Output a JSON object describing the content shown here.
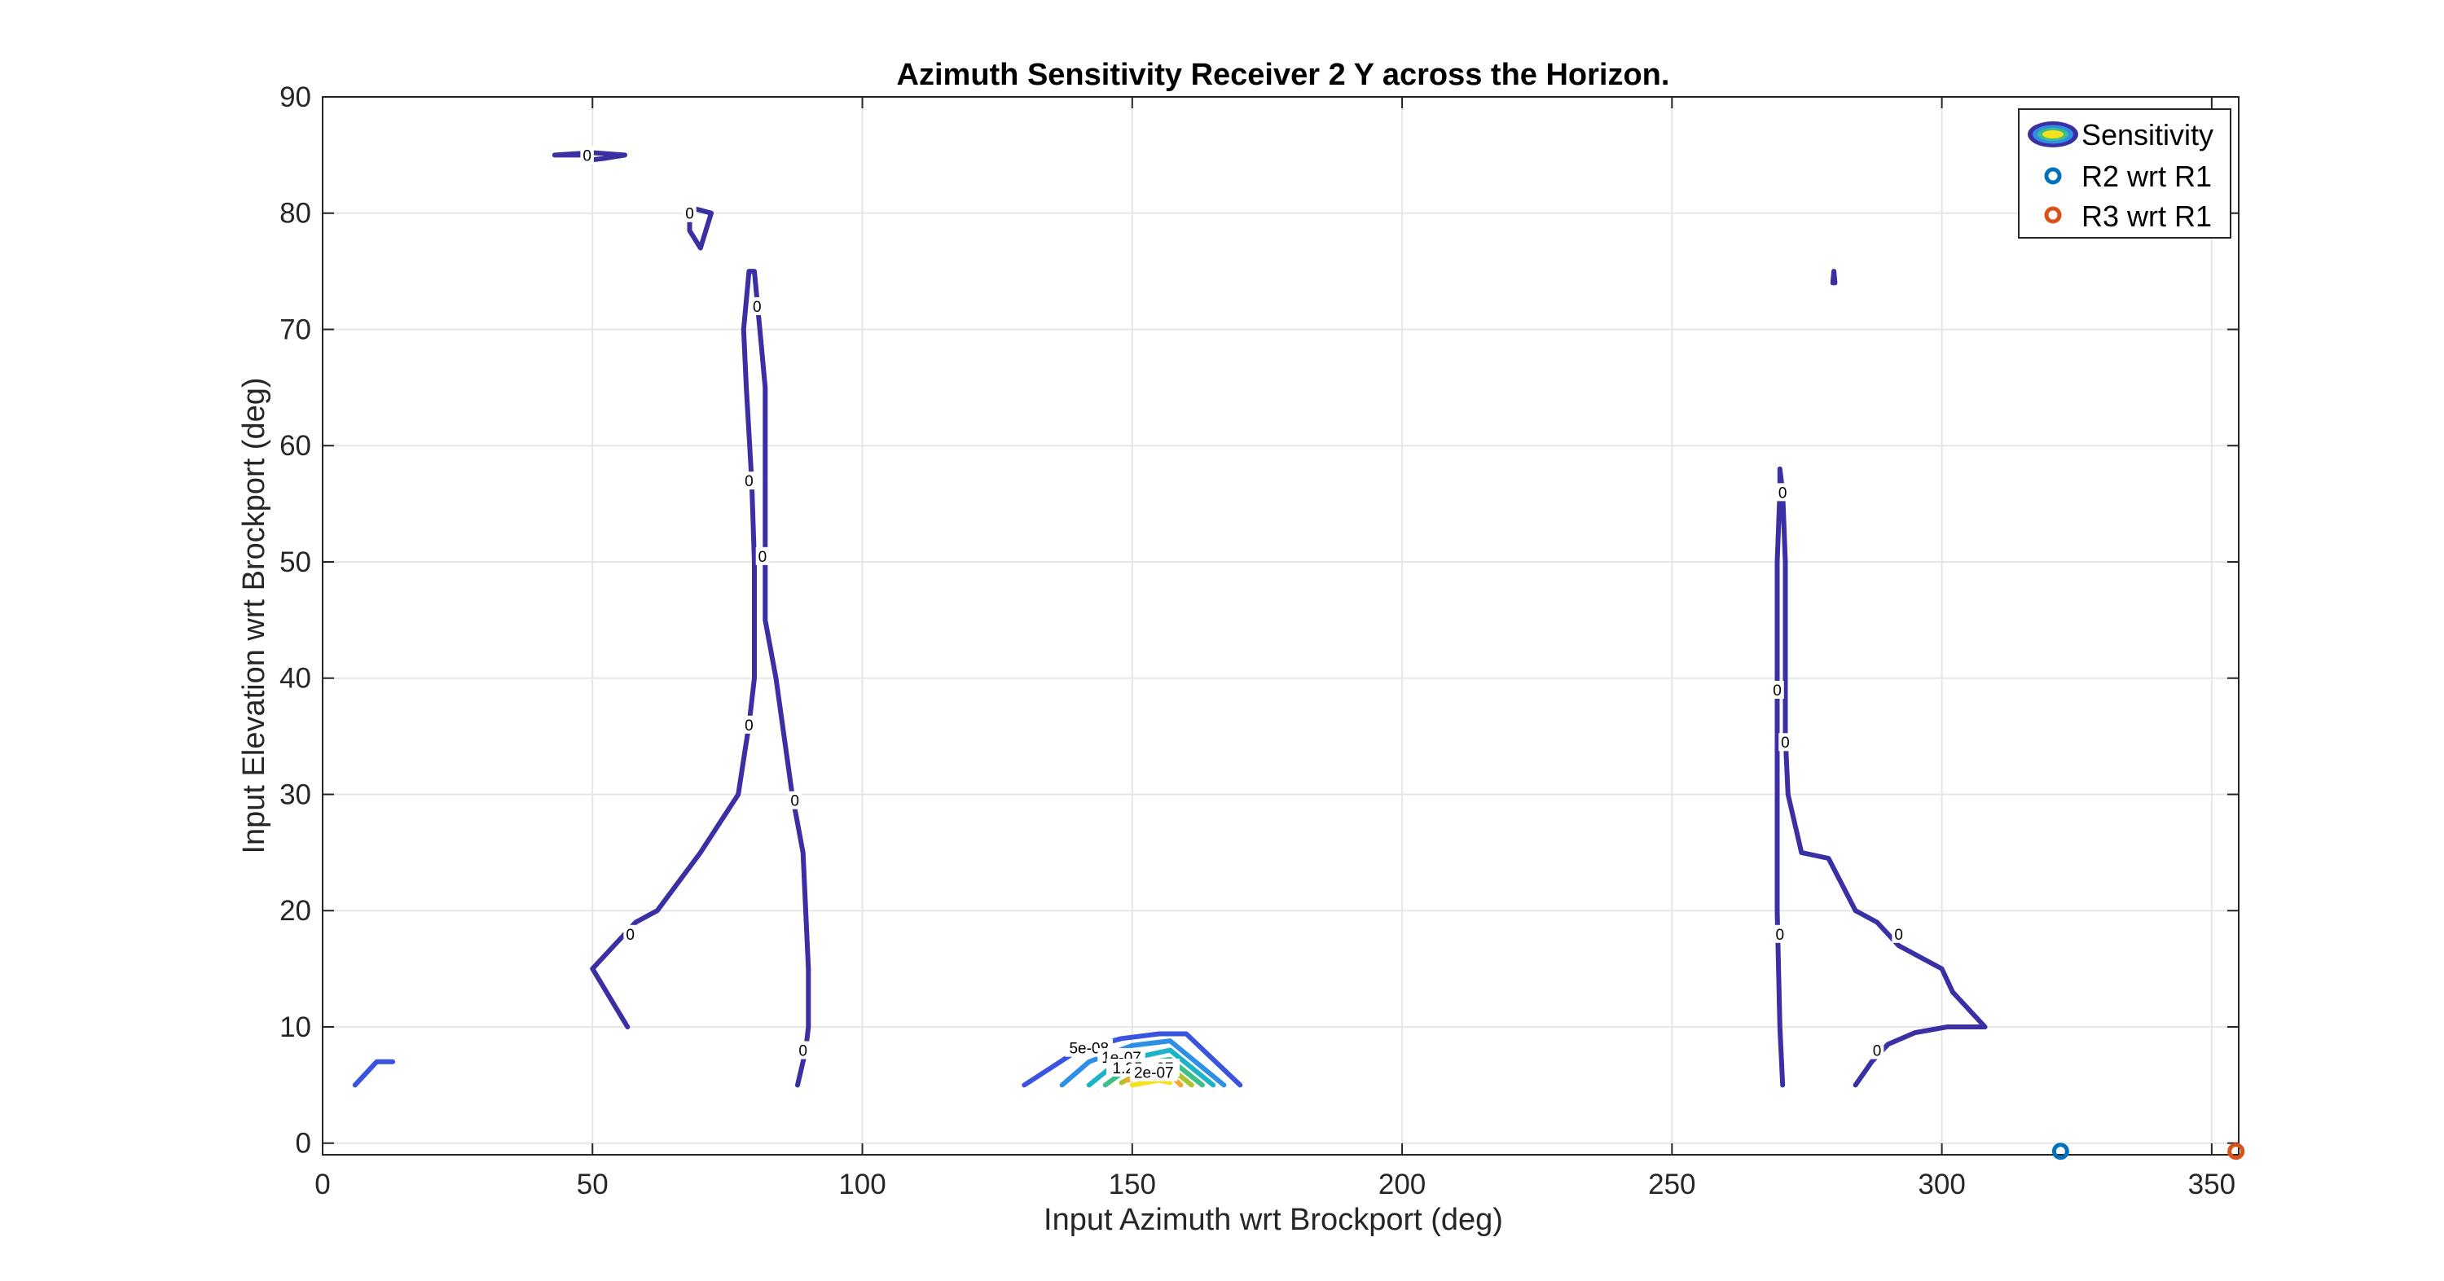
{
  "chart_data": {
    "type": "contour",
    "title": "Azimuth Sensitivity Receiver 2 Y across the Horizon.",
    "xlabel": "Input Azimuth wrt Brockport (deg)",
    "ylabel": "Input Elevation wrt Brockport (deg)",
    "xlim": [
      0,
      355
    ],
    "ylim": [
      -1,
      90
    ],
    "xticks": [
      0,
      50,
      100,
      150,
      200,
      250,
      300,
      350
    ],
    "yticks": [
      0,
      10,
      20,
      30,
      40,
      50,
      60,
      70,
      80,
      90
    ],
    "grid": true,
    "legend_position": "top-right",
    "legend": [
      {
        "label": "Sensitivity",
        "marker": "contour"
      },
      {
        "label": "R2 wrt R1",
        "marker": "circle",
        "color": "#0072BD"
      },
      {
        "label": "R3 wrt R1",
        "marker": "circle",
        "color": "#D95319"
      }
    ],
    "colors": {
      "level0": "#3a2fa3",
      "level1": "#3a54e0",
      "level2": "#2f8fe6",
      "level3": "#1cb3c8",
      "level4": "#3dc087",
      "level5": "#a8c530",
      "level6": "#f6a62f",
      "level7": "#f5e11d",
      "grid": "#e6e6e6",
      "axis": "#262626"
    },
    "contours": [
      {
        "level": 0,
        "label": "0",
        "color_key": "level0",
        "points": [
          [
            56.5,
            10
          ],
          [
            50,
            15
          ],
          [
            58,
            19
          ],
          [
            62,
            20
          ],
          [
            70,
            25
          ],
          [
            77,
            30
          ],
          [
            79,
            36
          ],
          [
            80,
            40
          ],
          [
            80,
            50
          ],
          [
            79.5,
            57
          ],
          [
            78.5,
            65
          ],
          [
            78,
            70
          ],
          [
            79,
            75
          ],
          [
            80,
            75
          ],
          [
            81,
            70
          ],
          [
            82,
            65
          ],
          [
            82,
            50
          ],
          [
            82,
            45
          ],
          [
            84,
            40
          ],
          [
            87,
            30
          ],
          [
            89,
            25
          ],
          [
            89.5,
            20
          ],
          [
            90,
            15
          ],
          [
            90,
            10
          ],
          [
            89.5,
            8
          ],
          [
            88,
            5
          ]
        ]
      },
      {
        "level": 0,
        "label": "0",
        "color_key": "level0",
        "points": [
          [
            43,
            85
          ],
          [
            48,
            85
          ],
          [
            50,
            84.6
          ],
          [
            52,
            84.7
          ],
          [
            56,
            85
          ],
          [
            50,
            85.2
          ],
          [
            43,
            85
          ]
        ]
      },
      {
        "level": 0,
        "label": "0",
        "color_key": "level0",
        "points": [
          [
            68,
            78.5
          ],
          [
            70,
            77
          ],
          [
            72,
            80
          ],
          [
            68,
            80.5
          ],
          [
            68,
            78.5
          ]
        ]
      },
      {
        "level": 0,
        "label": "0",
        "color_key": "level0",
        "points": [
          [
            270.5,
            5
          ],
          [
            270,
            10
          ],
          [
            269.5,
            20
          ],
          [
            269.5,
            30
          ],
          [
            269.5,
            40
          ],
          [
            269.5,
            50
          ],
          [
            270,
            56
          ],
          [
            270,
            58
          ],
          [
            270.5,
            56
          ],
          [
            271,
            50
          ],
          [
            271,
            45
          ],
          [
            271,
            40
          ],
          [
            271,
            35
          ],
          [
            271.5,
            30
          ],
          [
            274,
            25
          ],
          [
            279,
            24.5
          ],
          [
            284,
            20
          ],
          [
            288,
            19
          ],
          [
            292,
            17
          ],
          [
            300,
            15
          ],
          [
            302,
            13
          ],
          [
            308,
            10
          ],
          [
            301,
            10
          ],
          [
            295,
            9.5
          ],
          [
            290,
            8.5
          ],
          [
            287,
            7
          ],
          [
            284,
            5
          ]
        ]
      },
      {
        "level": 0,
        "label": "",
        "color_key": "level0",
        "points": [
          [
            279.8,
            74
          ],
          [
            280,
            75
          ],
          [
            280.2,
            74
          ]
        ]
      },
      {
        "level": 5e-08,
        "label": "",
        "color_key": "level1",
        "points": [
          [
            6,
            5
          ],
          [
            10,
            7
          ],
          [
            13,
            7
          ]
        ]
      },
      {
        "level": 5e-08,
        "label": "5e-08",
        "color_key": "level1",
        "points": [
          [
            130,
            5
          ],
          [
            140,
            8
          ],
          [
            148,
            9
          ],
          [
            155,
            9.4
          ],
          [
            160,
            9.4
          ],
          [
            170,
            5
          ]
        ]
      },
      {
        "level": 1e-07,
        "label": "1e-07",
        "color_key": "level2",
        "points": [
          [
            137,
            5
          ],
          [
            142,
            7
          ],
          [
            150,
            8.4
          ],
          [
            157,
            8.8
          ],
          [
            167,
            5
          ]
        ]
      },
      {
        "level": 1.25e-07,
        "label": "1.25e-07",
        "color_key": "level3",
        "points": [
          [
            142,
            5
          ],
          [
            146,
            6.5
          ],
          [
            152,
            7.5
          ],
          [
            157,
            8
          ],
          [
            165,
            5
          ]
        ]
      },
      {
        "level": 1.5e-07,
        "label": "",
        "color_key": "level4",
        "points": [
          [
            145,
            5
          ],
          [
            150,
            6.7
          ],
          [
            157,
            7.2
          ],
          [
            163,
            5
          ]
        ]
      },
      {
        "level": 1.75e-07,
        "label": "",
        "color_key": "level5",
        "points": [
          [
            148,
            5.2
          ],
          [
            153,
            6.4
          ],
          [
            157,
            6.5
          ],
          [
            161,
            5
          ]
        ]
      },
      {
        "level": 2e-07,
        "label": "2e-07",
        "color_key": "level6",
        "points": [
          [
            149,
            5.4
          ],
          [
            153,
            5.9
          ],
          [
            157,
            5.9
          ],
          [
            159,
            5
          ]
        ]
      },
      {
        "level": 2.25e-07,
        "label": "",
        "color_key": "level7",
        "points": [
          [
            150,
            5
          ],
          [
            155,
            5.4
          ],
          [
            157,
            5.2
          ]
        ]
      }
    ],
    "contour_labels": [
      {
        "text": "0",
        "x": 49,
        "y": 85
      },
      {
        "text": "0",
        "x": 68,
        "y": 80
      },
      {
        "text": "0",
        "x": 80.5,
        "y": 72
      },
      {
        "text": "0",
        "x": 79,
        "y": 57
      },
      {
        "text": "0",
        "x": 81.5,
        "y": 50.5
      },
      {
        "text": "0",
        "x": 79,
        "y": 36
      },
      {
        "text": "0",
        "x": 87.5,
        "y": 29.5
      },
      {
        "text": "0",
        "x": 57,
        "y": 18
      },
      {
        "text": "0",
        "x": 89,
        "y": 8
      },
      {
        "text": "0",
        "x": 270.5,
        "y": 56
      },
      {
        "text": "0",
        "x": 269.5,
        "y": 39
      },
      {
        "text": "0",
        "x": 271,
        "y": 34.5
      },
      {
        "text": "0",
        "x": 270,
        "y": 18
      },
      {
        "text": "0",
        "x": 292,
        "y": 18
      },
      {
        "text": "0",
        "x": 288,
        "y": 8
      },
      {
        "text": "5e-08",
        "x": 142,
        "y": 8.2
      },
      {
        "text": "1e-07",
        "x": 148,
        "y": 7.4
      },
      {
        "text": "1.25e-07",
        "x": 152,
        "y": 6.5
      },
      {
        "text": "2e-07",
        "x": 154,
        "y": 6.1
      }
    ],
    "series": [
      {
        "name": "R2 wrt R1",
        "x": [
          322
        ],
        "y": [
          -0.7
        ],
        "color": "#0072BD"
      },
      {
        "name": "R3 wrt R1",
        "x": [
          354.5
        ],
        "y": [
          -0.7
        ],
        "color": "#D95319"
      }
    ]
  }
}
